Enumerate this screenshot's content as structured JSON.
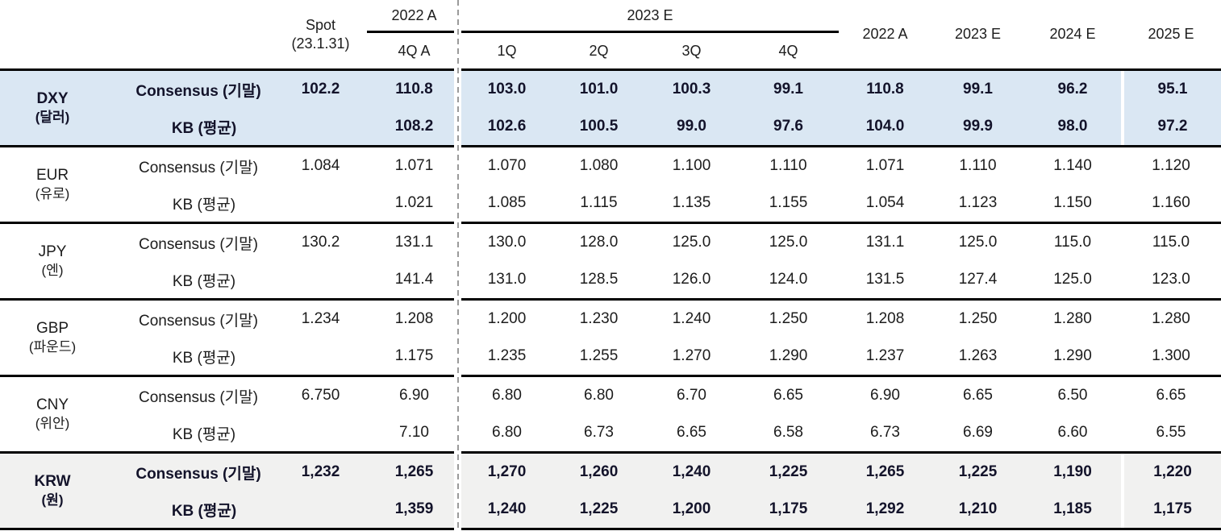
{
  "colors": {
    "highlight_blue": "#dae7f3",
    "highlight_gray": "#f1f1f0",
    "rule_black": "#000000",
    "divider_gray": "#9a9a9a",
    "bold_text": "#13132a",
    "text": "#1c1c1c"
  },
  "chart_data": {
    "type": "table",
    "header": {
      "spot": "Spot",
      "spot_date": "(23.1.31)",
      "q_group_2022": "2022 A",
      "q_group_2023": "2023 E",
      "q4a_label": "4Q A",
      "quarters": [
        "1Q",
        "2Q",
        "3Q",
        "4Q"
      ],
      "annuals": [
        "2022 A",
        "2023 E",
        "2024 E",
        "2025 E"
      ]
    },
    "groups": [
      {
        "code": "DXY",
        "name_kr": "(달러)",
        "highlight": "blue",
        "bold": true,
        "consensus_label": "Consensus (기말)",
        "kb_label": "KB (평균)",
        "consensus": {
          "spot": "102.2",
          "q4a": "110.8",
          "quarters": [
            "103.0",
            "101.0",
            "100.3",
            "99.1"
          ],
          "annuals": [
            "110.8",
            "99.1",
            "96.2",
            "95.1"
          ]
        },
        "kb": {
          "spot": "",
          "q4a": "108.2",
          "quarters": [
            "102.6",
            "100.5",
            "99.0",
            "97.6"
          ],
          "annuals": [
            "104.0",
            "99.9",
            "98.0",
            "97.2"
          ]
        }
      },
      {
        "code": "EUR",
        "name_kr": "(유로)",
        "highlight": "none",
        "bold": false,
        "consensus_label": "Consensus (기말)",
        "kb_label": "KB (평균)",
        "consensus": {
          "spot": "1.084",
          "q4a": "1.071",
          "quarters": [
            "1.070",
            "1.080",
            "1.100",
            "1.110"
          ],
          "annuals": [
            "1.071",
            "1.110",
            "1.140",
            "1.120"
          ]
        },
        "kb": {
          "spot": "",
          "q4a": "1.021",
          "quarters": [
            "1.085",
            "1.115",
            "1.135",
            "1.155"
          ],
          "annuals": [
            "1.054",
            "1.123",
            "1.150",
            "1.160"
          ]
        }
      },
      {
        "code": "JPY",
        "name_kr": "(엔)",
        "highlight": "none",
        "bold": false,
        "consensus_label": "Consensus (기말)",
        "kb_label": "KB (평균)",
        "consensus": {
          "spot": "130.2",
          "q4a": "131.1",
          "quarters": [
            "130.0",
            "128.0",
            "125.0",
            "125.0"
          ],
          "annuals": [
            "131.1",
            "125.0",
            "115.0",
            "115.0"
          ]
        },
        "kb": {
          "spot": "",
          "q4a": "141.4",
          "quarters": [
            "131.0",
            "128.5",
            "126.0",
            "124.0"
          ],
          "annuals": [
            "131.5",
            "127.4",
            "125.0",
            "123.0"
          ]
        }
      },
      {
        "code": "GBP",
        "name_kr": "(파운드)",
        "highlight": "none",
        "bold": false,
        "consensus_label": "Consensus (기말)",
        "kb_label": "KB (평균)",
        "consensus": {
          "spot": "1.234",
          "q4a": "1.208",
          "quarters": [
            "1.200",
            "1.230",
            "1.240",
            "1.250"
          ],
          "annuals": [
            "1.208",
            "1.250",
            "1.280",
            "1.280"
          ]
        },
        "kb": {
          "spot": "",
          "q4a": "1.175",
          "quarters": [
            "1.235",
            "1.255",
            "1.270",
            "1.290"
          ],
          "annuals": [
            "1.237",
            "1.263",
            "1.290",
            "1.300"
          ]
        }
      },
      {
        "code": "CNY",
        "name_kr": "(위안)",
        "highlight": "none",
        "bold": false,
        "consensus_label": "Consensus (기말)",
        "kb_label": "KB (평균)",
        "consensus": {
          "spot": "6.750",
          "q4a": "6.90",
          "quarters": [
            "6.80",
            "6.80",
            "6.70",
            "6.65"
          ],
          "annuals": [
            "6.90",
            "6.65",
            "6.50",
            "6.65"
          ]
        },
        "kb": {
          "spot": "",
          "q4a": "7.10",
          "quarters": [
            "6.80",
            "6.73",
            "6.65",
            "6.58"
          ],
          "annuals": [
            "6.73",
            "6.69",
            "6.60",
            "6.55"
          ]
        }
      },
      {
        "code": "KRW",
        "name_kr": "(원)",
        "highlight": "gray",
        "bold": true,
        "consensus_label": "Consensus (기말)",
        "kb_label": "KB (평균)",
        "consensus": {
          "spot": "1,232",
          "q4a": "1,265",
          "quarters": [
            "1,270",
            "1,260",
            "1,240",
            "1,225"
          ],
          "annuals": [
            "1,265",
            "1,225",
            "1,190",
            "1,220"
          ]
        },
        "kb": {
          "spot": "",
          "q4a": "1,359",
          "quarters": [
            "1,240",
            "1,225",
            "1,200",
            "1,175"
          ],
          "annuals": [
            "1,292",
            "1,210",
            "1,185",
            "1,175"
          ]
        }
      }
    ]
  }
}
